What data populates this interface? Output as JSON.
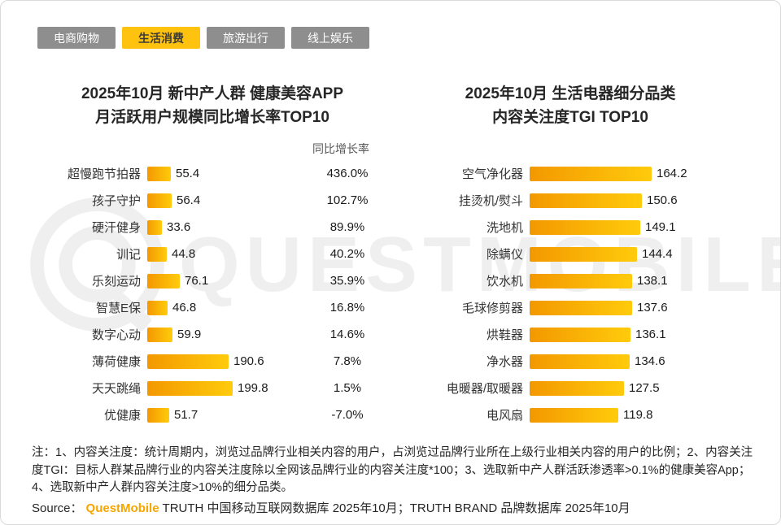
{
  "tabs": [
    {
      "label": "电商购物",
      "active": false
    },
    {
      "label": "生活消费",
      "active": true
    },
    {
      "label": "旅游出行",
      "active": false
    },
    {
      "label": "线上娱乐",
      "active": false
    }
  ],
  "chart_data": [
    {
      "type": "bar",
      "title_line1": "2025年10月 新中产人群 健康美容APP",
      "title_line2": "月活跃用户规模同比增长率TOP10",
      "value_column_header": "同比增长率",
      "categories": [
        "超慢跑节拍器",
        "孩子守护",
        "硬汗健身",
        "训记",
        "乐刻运动",
        "智慧E保",
        "数字心动",
        "薄荷健康",
        "天天跳绳",
        "优健康"
      ],
      "values": [
        55.4,
        56.4,
        33.6,
        44.8,
        76.1,
        46.8,
        59.9,
        190.6,
        199.8,
        51.7
      ],
      "growth_rates": [
        "436.0%",
        "102.7%",
        "89.9%",
        "40.2%",
        "35.9%",
        "16.8%",
        "14.6%",
        "7.8%",
        "1.5%",
        "-7.0%"
      ],
      "xlim": [
        0,
        200
      ],
      "legend_position": "none",
      "grid": false
    },
    {
      "type": "bar",
      "title_line1": "2025年10月 生活电器细分品类",
      "title_line2": "内容关注度TGI TOP10",
      "categories": [
        "空气净化器",
        "挂烫机/熨斗",
        "洗地机",
        "除螨仪",
        "饮水机",
        "毛球修剪器",
        "烘鞋器",
        "净水器",
        "电暖器/取暖器",
        "电风扇"
      ],
      "values": [
        164.2,
        150.6,
        149.1,
        144.4,
        138.1,
        137.6,
        136.1,
        134.6,
        127.5,
        119.8
      ],
      "xlim": [
        0,
        170
      ],
      "legend_position": "none",
      "grid": false
    }
  ],
  "watermark": "QUESTMOBILE",
  "notes": "注：1、内容关注度：统计周期内，浏览过品牌行业相关内容的用户，占浏览过品牌行业所在上级行业相关内容的用户的比例；2、内容关注度TGI：目标人群某品牌行业的内容关注度除以全网该品牌行业的内容关注度*100；3、选取新中产人群活跃渗透率>0.1%的健康美容App；4、选取新中产人群内容关注度>10%的细分品类。",
  "source": {
    "prefix": "Source：",
    "brand": "QuestMobile",
    "text": "TRUTH 中国移动互联网数据库 2025年10月；TRUTH BRAND 品牌数据库 2025年10月"
  },
  "colors": {
    "tab_active_bg": "#FFC20E",
    "tab_inactive_bg": "#8E8E8E",
    "bar_gradient_start": "#F39800",
    "bar_gradient_end": "#FFCB0C",
    "brand_orange": "#F7A600",
    "watermark_gray": "#EFEFEF"
  }
}
